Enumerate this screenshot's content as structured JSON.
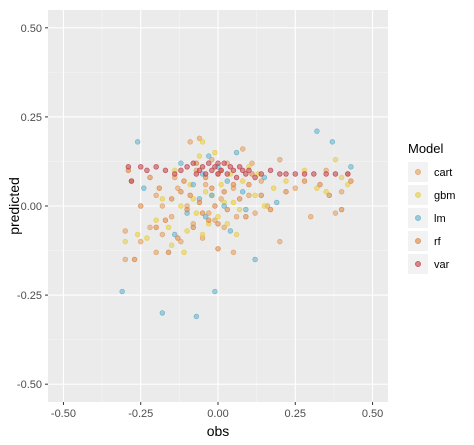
{
  "chart_data": {
    "type": "scatter",
    "title": "",
    "xlabel": "obs",
    "ylabel": "predicted",
    "xlim": [
      -0.55,
      0.55
    ],
    "ylim": [
      -0.55,
      0.55
    ],
    "x_ticks": [
      -0.5,
      -0.25,
      0,
      0.25,
      0.5
    ],
    "y_ticks": [
      -0.5,
      -0.25,
      0,
      0.25,
      0.5
    ],
    "x_tick_labels": [
      "-0.50",
      "-0.25",
      "0.00",
      "0.25",
      "0.50"
    ],
    "y_tick_labels": [
      "-0.50",
      "-0.25",
      "0.00",
      "0.25",
      "0.50"
    ],
    "grid": true,
    "legend_title": "Model",
    "legend_position": "right",
    "series": [
      {
        "name": "cart",
        "color": "#E29C5C",
        "points": [
          [
            -0.3,
            -0.07
          ],
          [
            -0.3,
            -0.15
          ],
          [
            -0.28,
            0.07
          ],
          [
            -0.25,
            -0.1
          ],
          [
            -0.22,
            -0.06
          ],
          [
            -0.2,
            0.03
          ],
          [
            -0.18,
            -0.08
          ],
          [
            -0.15,
            -0.03
          ],
          [
            -0.13,
            0.05
          ],
          [
            -0.12,
            -0.1
          ],
          [
            -0.1,
            0.0
          ],
          [
            -0.09,
            0.18
          ],
          [
            -0.08,
            -0.05
          ],
          [
            -0.07,
            0.1
          ],
          [
            -0.06,
            0.19
          ],
          [
            -0.05,
            -0.09
          ],
          [
            -0.04,
            0.06
          ],
          [
            -0.03,
            -0.02
          ],
          [
            -0.02,
            0.13
          ],
          [
            -0.01,
            -0.04
          ],
          [
            0.0,
            0.09
          ],
          [
            0.01,
            0.02
          ],
          [
            0.02,
            -0.06
          ],
          [
            0.03,
            0.12
          ],
          [
            0.05,
            0.05
          ],
          [
            0.06,
            -0.03
          ],
          [
            0.08,
            0.16
          ],
          [
            0.1,
            0.03
          ],
          [
            0.12,
            -0.02
          ],
          [
            0.14,
            0.07
          ],
          [
            0.16,
            0.0
          ],
          [
            0.2,
            0.13
          ],
          [
            0.25,
            0.05
          ],
          [
            0.3,
            -0.03
          ],
          [
            0.35,
            0.1
          ],
          [
            0.4,
            0.04
          ],
          [
            0.42,
            0.09
          ],
          [
            0.38,
            -0.02
          ],
          [
            -0.2,
            -0.13
          ],
          [
            0.05,
            -0.13
          ],
          [
            0.2,
            -0.1
          ],
          [
            -0.14,
            0.08
          ],
          [
            0.11,
            0.12
          ],
          [
            -0.18,
            0.0
          ]
        ]
      },
      {
        "name": "gbm",
        "color": "#E8CC3E",
        "points": [
          [
            -0.3,
            -0.1
          ],
          [
            -0.26,
            -0.08
          ],
          [
            -0.23,
            -0.09
          ],
          [
            -0.2,
            -0.04
          ],
          [
            -0.18,
            0.02
          ],
          [
            -0.16,
            -0.06
          ],
          [
            -0.14,
            0.1
          ],
          [
            -0.12,
            0.0
          ],
          [
            -0.11,
            -0.13
          ],
          [
            -0.1,
            -0.07
          ],
          [
            -0.09,
            0.06
          ],
          [
            -0.08,
            0.02
          ],
          [
            -0.07,
            -0.02
          ],
          [
            -0.06,
            0.14
          ],
          [
            -0.05,
            -0.08
          ],
          [
            -0.04,
            0.04
          ],
          [
            -0.03,
            -0.05
          ],
          [
            -0.02,
            0.03
          ],
          [
            -0.01,
            0.15
          ],
          [
            0.0,
            -0.03
          ],
          [
            0.01,
            0.06
          ],
          [
            0.02,
            0.01
          ],
          [
            0.03,
            -0.05
          ],
          [
            0.04,
            0.09
          ],
          [
            0.05,
            0.01
          ],
          [
            0.07,
            -0.01
          ],
          [
            0.08,
            0.07
          ],
          [
            0.1,
            0.11
          ],
          [
            0.12,
            0.03
          ],
          [
            0.15,
            0.0
          ],
          [
            0.18,
            0.05
          ],
          [
            0.22,
            0.07
          ],
          [
            0.28,
            0.1
          ],
          [
            0.32,
            0.05
          ],
          [
            0.35,
            0.04
          ],
          [
            0.38,
            0.13
          ],
          [
            0.4,
            0.08
          ],
          [
            0.42,
            0.06
          ],
          [
            -0.05,
            0.18
          ],
          [
            0.06,
            -0.08
          ],
          [
            -0.15,
            -0.11
          ],
          [
            0.13,
            0.09
          ]
        ]
      },
      {
        "name": "lm",
        "color": "#5EAFCA",
        "points": [
          [
            -0.31,
            -0.24
          ],
          [
            -0.26,
            0.18
          ],
          [
            -0.24,
            0.05
          ],
          [
            -0.18,
            -0.3
          ],
          [
            -0.14,
            -0.08
          ],
          [
            -0.12,
            0.12
          ],
          [
            -0.1,
            -0.02
          ],
          [
            -0.08,
            0.06
          ],
          [
            -0.07,
            -0.31
          ],
          [
            -0.05,
            0.09
          ],
          [
            -0.04,
            -0.03
          ],
          [
            -0.03,
            0.14
          ],
          [
            -0.02,
            0.03
          ],
          [
            -0.01,
            -0.24
          ],
          [
            0.0,
            0.11
          ],
          [
            0.02,
            0.0
          ],
          [
            0.04,
            -0.07
          ],
          [
            0.06,
            0.15
          ],
          [
            0.09,
            -0.01
          ],
          [
            0.12,
            -0.15
          ],
          [
            0.15,
            0.08
          ],
          [
            0.19,
            0.01
          ],
          [
            0.32,
            0.21
          ],
          [
            0.37,
            0.18
          ],
          [
            0.43,
            0.11
          ],
          [
            0.08,
            0.04
          ],
          [
            -0.06,
            0.02
          ],
          [
            0.03,
            0.07
          ]
        ]
      },
      {
        "name": "rf",
        "color": "#D9833E",
        "points": [
          [
            -0.29,
            0.1
          ],
          [
            -0.27,
            -0.15
          ],
          [
            -0.25,
            0.0
          ],
          [
            -0.22,
            0.08
          ],
          [
            -0.2,
            -0.06
          ],
          [
            -0.19,
            0.05
          ],
          [
            -0.17,
            -0.04
          ],
          [
            -0.15,
            0.02
          ],
          [
            -0.13,
            -0.09
          ],
          [
            -0.11,
            0.07
          ],
          [
            -0.1,
            -0.01
          ],
          [
            -0.09,
            0.03
          ],
          [
            -0.08,
            -0.06
          ],
          [
            -0.07,
            0.12
          ],
          [
            -0.06,
            0.01
          ],
          [
            -0.05,
            -0.02
          ],
          [
            -0.04,
            0.08
          ],
          [
            -0.03,
            -0.04
          ],
          [
            -0.02,
            0.05
          ],
          [
            -0.01,
            0.0
          ],
          [
            0.0,
            -0.05
          ],
          [
            0.01,
            0.1
          ],
          [
            0.02,
            0.04
          ],
          [
            0.03,
            -0.01
          ],
          [
            0.05,
            0.06
          ],
          [
            0.07,
            0.02
          ],
          [
            0.09,
            -0.03
          ],
          [
            0.11,
            0.09
          ],
          [
            0.14,
            0.03
          ],
          [
            0.17,
            -0.01
          ],
          [
            0.22,
            0.04
          ],
          [
            0.28,
            0.07
          ],
          [
            0.33,
            0.06
          ],
          [
            0.36,
            0.03
          ],
          [
            0.4,
            -0.01
          ],
          [
            0.43,
            0.07
          ],
          [
            -0.16,
            -0.13
          ],
          [
            0.0,
            -0.12
          ],
          [
            0.1,
            0.06
          ],
          [
            -0.12,
            0.04
          ]
        ]
      },
      {
        "name": "var",
        "color": "#C03A45",
        "points": [
          [
            -0.29,
            0.11
          ],
          [
            -0.25,
            0.11
          ],
          [
            -0.23,
            0.1
          ],
          [
            -0.2,
            0.11
          ],
          [
            -0.17,
            0.1
          ],
          [
            -0.14,
            0.09
          ],
          [
            -0.12,
            0.1
          ],
          [
            -0.1,
            0.11
          ],
          [
            -0.08,
            0.12
          ],
          [
            -0.07,
            0.09
          ],
          [
            -0.06,
            0.1
          ],
          [
            -0.05,
            0.11
          ],
          [
            -0.04,
            0.09
          ],
          [
            -0.03,
            0.12
          ],
          [
            -0.02,
            0.1
          ],
          [
            -0.01,
            0.11
          ],
          [
            0.0,
            0.09
          ],
          [
            0.01,
            0.1
          ],
          [
            0.02,
            0.12
          ],
          [
            0.03,
            0.09
          ],
          [
            0.04,
            0.11
          ],
          [
            0.05,
            0.1
          ],
          [
            0.06,
            0.08
          ],
          [
            0.07,
            0.11
          ],
          [
            0.08,
            0.1
          ],
          [
            0.09,
            0.09
          ],
          [
            0.1,
            0.1
          ],
          [
            0.12,
            0.08
          ],
          [
            0.14,
            0.09
          ],
          [
            0.17,
            0.1
          ],
          [
            0.2,
            0.09
          ],
          [
            0.22,
            0.09
          ],
          [
            0.25,
            0.09
          ],
          [
            0.28,
            0.09
          ],
          [
            0.31,
            0.09
          ],
          [
            0.35,
            0.09
          ],
          [
            0.38,
            0.09
          ],
          [
            0.42,
            0.09
          ],
          [
            -0.28,
            0.07
          ],
          [
            0.0,
            0.12
          ]
        ]
      }
    ]
  }
}
